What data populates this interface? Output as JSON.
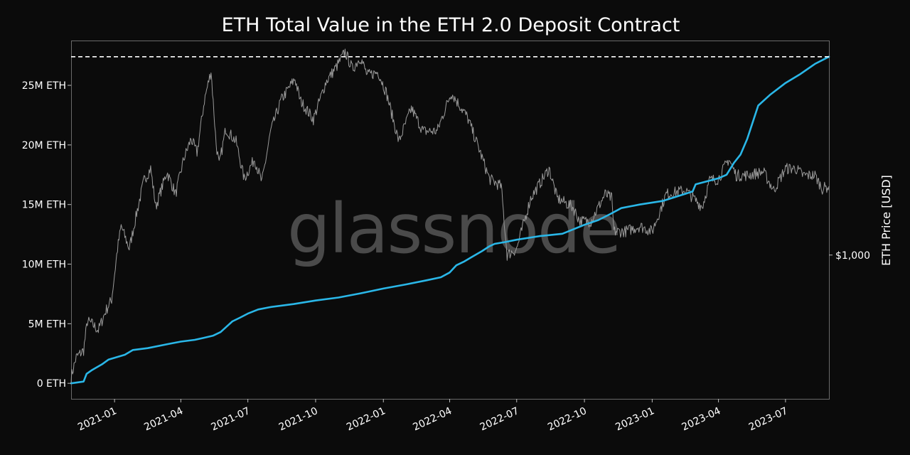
{
  "chart_data": {
    "type": "line",
    "title": "ETH Total Value in the ETH 2.0 Deposit Contract",
    "watermark": "glassnode",
    "xlabel": "",
    "ylabel_left": "",
    "ylabel_right": "ETH Price [USD]",
    "x_ticks": [
      "2021-01",
      "2021-04",
      "2021-07",
      "2021-10",
      "2022-01",
      "2022-04",
      "2022-07",
      "2022-10",
      "2023-01",
      "2023-04",
      "2023-07"
    ],
    "x_range": [
      "2020-11-03",
      "2023-08-29"
    ],
    "y_left_ticks": [
      {
        "value": 0,
        "label": "0 ETH"
      },
      {
        "value": 5000000,
        "label": "5M ETH"
      },
      {
        "value": 10000000,
        "label": "10M ETH"
      },
      {
        "value": 15000000,
        "label": "15M ETH"
      },
      {
        "value": 20000000,
        "label": "20M ETH"
      },
      {
        "value": 25000000,
        "label": "25M ETH"
      }
    ],
    "y_left_range": [
      -1300000,
      28700000
    ],
    "y_right_ticks": [
      {
        "value": 1000,
        "label": "$1,000"
      }
    ],
    "y_right_scale": "log",
    "y_right_range": [
      330,
      5200
    ],
    "reference_line": {
      "value": 27400000,
      "style": "dashed",
      "color": "#ffffff"
    },
    "grid": false,
    "colors": {
      "background": "#0b0b0b",
      "deposit": "#2ab7e8",
      "price": "#9a9a9a",
      "frame": "#6a6a6a"
    },
    "series": [
      {
        "axis": "left",
        "points": [
          [
            "2020-11-03",
            0
          ],
          [
            "2020-11-20",
            150000
          ],
          [
            "2020-11-24",
            800000
          ],
          [
            "2020-12-01",
            1100000
          ],
          [
            "2020-12-15",
            1600000
          ],
          [
            "2020-12-24",
            2000000
          ],
          [
            "2021-01-15",
            2400000
          ],
          [
            "2021-01-26",
            2800000
          ],
          [
            "2021-02-15",
            2950000
          ],
          [
            "2021-03-15",
            3300000
          ],
          [
            "2021-04-01",
            3500000
          ],
          [
            "2021-04-20",
            3650000
          ],
          [
            "2021-05-01",
            3800000
          ],
          [
            "2021-05-15",
            4000000
          ],
          [
            "2021-05-25",
            4300000
          ],
          [
            "2021-06-01",
            4700000
          ],
          [
            "2021-06-10",
            5200000
          ],
          [
            "2021-06-20",
            5500000
          ],
          [
            "2021-07-01",
            5850000
          ],
          [
            "2021-07-15",
            6200000
          ],
          [
            "2021-08-01",
            6400000
          ],
          [
            "2021-09-01",
            6650000
          ],
          [
            "2021-10-01",
            6950000
          ],
          [
            "2021-11-01",
            7200000
          ],
          [
            "2021-12-01",
            7550000
          ],
          [
            "2022-01-01",
            7950000
          ],
          [
            "2022-02-01",
            8300000
          ],
          [
            "2022-03-01",
            8650000
          ],
          [
            "2022-03-20",
            8900000
          ],
          [
            "2022-04-01",
            9300000
          ],
          [
            "2022-04-10",
            9900000
          ],
          [
            "2022-04-20",
            10200000
          ],
          [
            "2022-05-01",
            10600000
          ],
          [
            "2022-05-15",
            11100000
          ],
          [
            "2022-05-25",
            11500000
          ],
          [
            "2022-06-01",
            11700000
          ],
          [
            "2022-06-15",
            11850000
          ],
          [
            "2022-07-01",
            12050000
          ],
          [
            "2022-08-01",
            12350000
          ],
          [
            "2022-09-01",
            12550000
          ],
          [
            "2022-09-15",
            12900000
          ],
          [
            "2022-10-01",
            13300000
          ],
          [
            "2022-10-20",
            13700000
          ],
          [
            "2022-11-05",
            14200000
          ],
          [
            "2022-11-20",
            14700000
          ],
          [
            "2022-12-15",
            15000000
          ],
          [
            "2023-01-15",
            15300000
          ],
          [
            "2023-02-15",
            15900000
          ],
          [
            "2023-02-25",
            16100000
          ],
          [
            "2023-03-01",
            16700000
          ],
          [
            "2023-04-01",
            17200000
          ],
          [
            "2023-04-12",
            17500000
          ],
          [
            "2023-04-22",
            18500000
          ],
          [
            "2023-05-01",
            19200000
          ],
          [
            "2023-05-10",
            20500000
          ],
          [
            "2023-05-18",
            22000000
          ],
          [
            "2023-05-25",
            23300000
          ],
          [
            "2023-06-10",
            24200000
          ],
          [
            "2023-07-01",
            25200000
          ],
          [
            "2023-07-20",
            25900000
          ],
          [
            "2023-08-10",
            26800000
          ],
          [
            "2023-08-29",
            27400000
          ]
        ]
      },
      {
        "axis": "right",
        "points": [
          [
            "2020-11-03",
            390
          ],
          [
            "2020-11-10",
            455
          ],
          [
            "2020-11-20",
            480
          ],
          [
            "2020-11-25",
            600
          ],
          [
            "2020-12-01",
            590
          ],
          [
            "2020-12-10",
            560
          ],
          [
            "2020-12-20",
            650
          ],
          [
            "2020-12-28",
            710
          ],
          [
            "2021-01-05",
            1050
          ],
          [
            "2021-01-10",
            1250
          ],
          [
            "2021-01-21",
            1050
          ],
          [
            "2021-01-31",
            1380
          ],
          [
            "2021-02-10",
            1780
          ],
          [
            "2021-02-19",
            1950
          ],
          [
            "2021-02-26",
            1450
          ],
          [
            "2021-03-13",
            1900
          ],
          [
            "2021-03-25",
            1600
          ],
          [
            "2021-04-05",
            2100
          ],
          [
            "2021-04-15",
            2450
          ],
          [
            "2021-04-23",
            2200
          ],
          [
            "2021-05-03",
            3300
          ],
          [
            "2021-05-12",
            4150
          ],
          [
            "2021-05-19",
            2350
          ],
          [
            "2021-05-23",
            2000
          ],
          [
            "2021-06-01",
            2650
          ],
          [
            "2021-06-15",
            2400
          ],
          [
            "2021-06-26",
            1800
          ],
          [
            "2021-07-10",
            2100
          ],
          [
            "2021-07-20",
            1750
          ],
          [
            "2021-08-01",
            2600
          ],
          [
            "2021-08-15",
            3300
          ],
          [
            "2021-09-03",
            3900
          ],
          [
            "2021-09-10",
            3300
          ],
          [
            "2021-09-28",
            2850
          ],
          [
            "2021-10-15",
            3800
          ],
          [
            "2021-10-30",
            4300
          ],
          [
            "2021-11-10",
            4800
          ],
          [
            "2021-11-20",
            4200
          ],
          [
            "2021-12-01",
            4600
          ],
          [
            "2021-12-10",
            4000
          ],
          [
            "2021-12-25",
            4100
          ],
          [
            "2022-01-05",
            3500
          ],
          [
            "2022-01-22",
            2400
          ],
          [
            "2022-02-08",
            3100
          ],
          [
            "2022-02-24",
            2600
          ],
          [
            "2022-03-15",
            2600
          ],
          [
            "2022-04-03",
            3500
          ],
          [
            "2022-04-25",
            2900
          ],
          [
            "2022-05-10",
            2300
          ],
          [
            "2022-05-25",
            1800
          ],
          [
            "2022-06-10",
            1700
          ],
          [
            "2022-06-18",
            1000
          ],
          [
            "2022-07-01",
            1050
          ],
          [
            "2022-07-20",
            1550
          ],
          [
            "2022-08-14",
            1950
          ],
          [
            "2022-08-25",
            1550
          ],
          [
            "2022-09-15",
            1450
          ],
          [
            "2022-09-25",
            1300
          ],
          [
            "2022-10-10",
            1300
          ],
          [
            "2022-10-29",
            1600
          ],
          [
            "2022-11-07",
            1550
          ],
          [
            "2022-11-10",
            1200
          ],
          [
            "2022-11-25",
            1200
          ],
          [
            "2022-12-15",
            1250
          ],
          [
            "2023-01-01",
            1200
          ],
          [
            "2023-01-20",
            1600
          ],
          [
            "2023-02-15",
            1650
          ],
          [
            "2023-03-10",
            1450
          ],
          [
            "2023-03-20",
            1780
          ],
          [
            "2023-04-01",
            1800
          ],
          [
            "2023-04-15",
            2100
          ],
          [
            "2023-04-25",
            1850
          ],
          [
            "2023-05-10",
            1850
          ],
          [
            "2023-06-01",
            1900
          ],
          [
            "2023-06-15",
            1650
          ],
          [
            "2023-07-01",
            1950
          ],
          [
            "2023-07-15",
            1950
          ],
          [
            "2023-07-25",
            1850
          ],
          [
            "2023-08-10",
            1850
          ],
          [
            "2023-08-20",
            1670
          ],
          [
            "2023-08-29",
            1700
          ]
        ]
      }
    ]
  }
}
